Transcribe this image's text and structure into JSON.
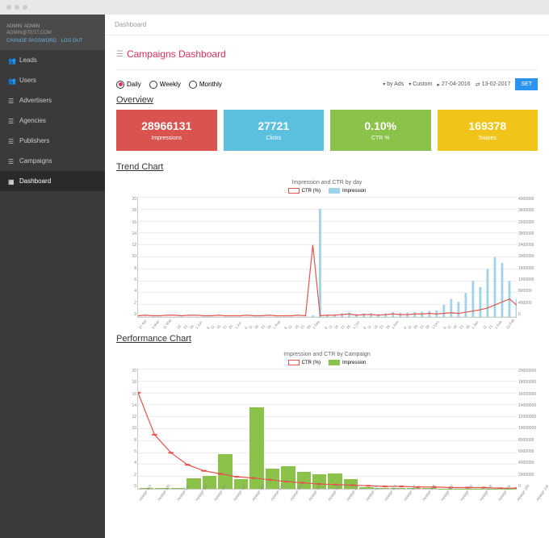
{
  "user": {
    "name": "ADMIN",
    "role": "ADMIN",
    "email": "ADMIN@TEST.COM",
    "change_pw": "CHANGE PASSWORD",
    "logout": "LOG OUT"
  },
  "nav": {
    "items": [
      {
        "label": "Leads"
      },
      {
        "label": "Users"
      },
      {
        "label": "Advertisers"
      },
      {
        "label": "Agencies"
      },
      {
        "label": "Publishers"
      },
      {
        "label": "Campaigns"
      },
      {
        "label": "Dashboard",
        "active": true
      }
    ]
  },
  "breadcrumb": "Dashboard",
  "page_title": "Campaigns Dashboard",
  "period": {
    "daily": "Daily",
    "weekly": "Weekly",
    "monthly": "Monthly",
    "selected": "daily"
  },
  "filters": {
    "by": "by Ads",
    "range": "Custom",
    "from": "27-04-2016",
    "to": "13-02-2017",
    "set": "SET"
  },
  "overview": {
    "title": "Overview",
    "cards": [
      {
        "value": "28966131",
        "label": "Impressions",
        "bg": "#d9534f"
      },
      {
        "value": "27721",
        "label": "Clicks",
        "bg": "#5bc0de"
      },
      {
        "value": "0.10%",
        "label": "CTR %",
        "bg": "#8bc34a"
      },
      {
        "value": "169378",
        "label": "Swipes",
        "bg": "#f0c419"
      }
    ]
  },
  "trend": {
    "section": "Trend Chart",
    "title": "Impression and CTR by day",
    "legend": [
      {
        "label": "CTR (%)",
        "color": "#e4554f"
      },
      {
        "label": "Impression",
        "color": "#9fd3ea"
      }
    ],
    "y_left": {
      "min": 0,
      "max": 20,
      "step": 2
    },
    "y_right": {
      "min": 0,
      "max": 4000000,
      "step": 400000
    },
    "x_labels": [
      "27 Apr",
      "3 May",
      "11 May",
      "16",
      "21",
      "26",
      "1 Jun",
      "6",
      "11",
      "16",
      "21",
      "26",
      "1 Jul",
      "6",
      "11",
      "16",
      "21",
      "26",
      "1 Aug",
      "6",
      "11",
      "16",
      "21",
      "26",
      "1 Sep",
      "6",
      "11",
      "16",
      "21",
      "26",
      "1 Oct",
      "6",
      "11",
      "16",
      "21",
      "26",
      "1 Nov",
      "6",
      "11",
      "16",
      "21",
      "26",
      "1 Dec",
      "6",
      "11",
      "16",
      "21",
      "26",
      "1 Jan",
      "11",
      "21",
      "1 Feb",
      "13 Feb"
    ],
    "ctr_values": [
      0.2,
      0.3,
      0.2,
      0.2,
      0.3,
      0.3,
      0.2,
      0.3,
      0.3,
      0.2,
      0.2,
      0.3,
      0.2,
      0.2,
      0.2,
      0.3,
      0.2,
      0.2,
      0.3,
      0.2,
      0.2,
      0.2,
      0.3,
      0.2,
      12,
      0.2,
      0.3,
      0.3,
      0.4,
      0.5,
      0.3,
      0.4,
      0.4,
      0.3,
      0.4,
      0.5,
      0.4,
      0.4,
      0.5,
      0.5,
      0.6,
      0.5,
      0.6,
      0.7,
      0.6,
      0.8,
      1.0,
      1.2,
      1.5,
      2.0,
      2.5,
      3.0,
      2.0
    ],
    "impr_values": [
      5000,
      8000,
      6000,
      5000,
      7000,
      8000,
      6000,
      7000,
      8000,
      5000,
      6000,
      7000,
      6000,
      5000,
      6000,
      8000,
      7000,
      6000,
      8000,
      5000,
      6000,
      7000,
      8000,
      6000,
      50000,
      3600000,
      80000,
      90000,
      120000,
      150000,
      100000,
      120000,
      130000,
      100000,
      120000,
      160000,
      140000,
      150000,
      170000,
      180000,
      200000,
      220000,
      400000,
      600000,
      500000,
      800000,
      1200000,
      1000000,
      1600000,
      2000000,
      1800000,
      1200000,
      600000
    ]
  },
  "perf": {
    "section": "Performance Chart",
    "title": "Impression and CTR by Campaign",
    "legend": [
      {
        "label": "CTR (%)",
        "color": "#e4554f"
      },
      {
        "label": "Impression",
        "color": "#8bc34a"
      }
    ],
    "y_left": {
      "min": 0,
      "max": 20,
      "step": 2
    },
    "y_right": {
      "min": 0,
      "max": 20000000,
      "step": 2000000
    },
    "x_labels": [
      "mpaign 113",
      "mpaign 120",
      "mpaign 114",
      "mpaign 115",
      "mpaign 121",
      "mpaign 112",
      "mpaign 122",
      "mpaign 123",
      "mpaign 109",
      "mpaign 103",
      "mpaign 102",
      "mpaign 110",
      "mpaign 101",
      "mpaign 105",
      "mpaign 117",
      "mpaign 104",
      "mpaign 107",
      "mpaign 106",
      "mpaign 108",
      "mpaign 116",
      "mpaign 100",
      "mpaign 118",
      "mpaign 111",
      "mpaign 119"
    ],
    "ctr_values": [
      16,
      9,
      6,
      4,
      3,
      2.5,
      2,
      1.8,
      1.5,
      1.2,
      1,
      0.8,
      0.7,
      0.6,
      0.5,
      0.4,
      0.4,
      0.3,
      0.3,
      0.2,
      0.2,
      0.2,
      0.1,
      0.1
    ],
    "impr_values": [
      100000,
      200000,
      150000,
      1800000,
      2200000,
      5800000,
      1600000,
      13500000,
      3300000,
      3800000,
      2800000,
      2400000,
      2600000,
      1600000,
      300000,
      200000,
      150000,
      100000,
      80000,
      60000,
      50000,
      40000,
      30000,
      20000
    ]
  },
  "colors": {
    "accent": "#d9305f",
    "ctr": "#e4554f",
    "impr_trend": "#9fd3ea",
    "impr_perf": "#8bc34a",
    "set_btn": "#2a95f0"
  }
}
